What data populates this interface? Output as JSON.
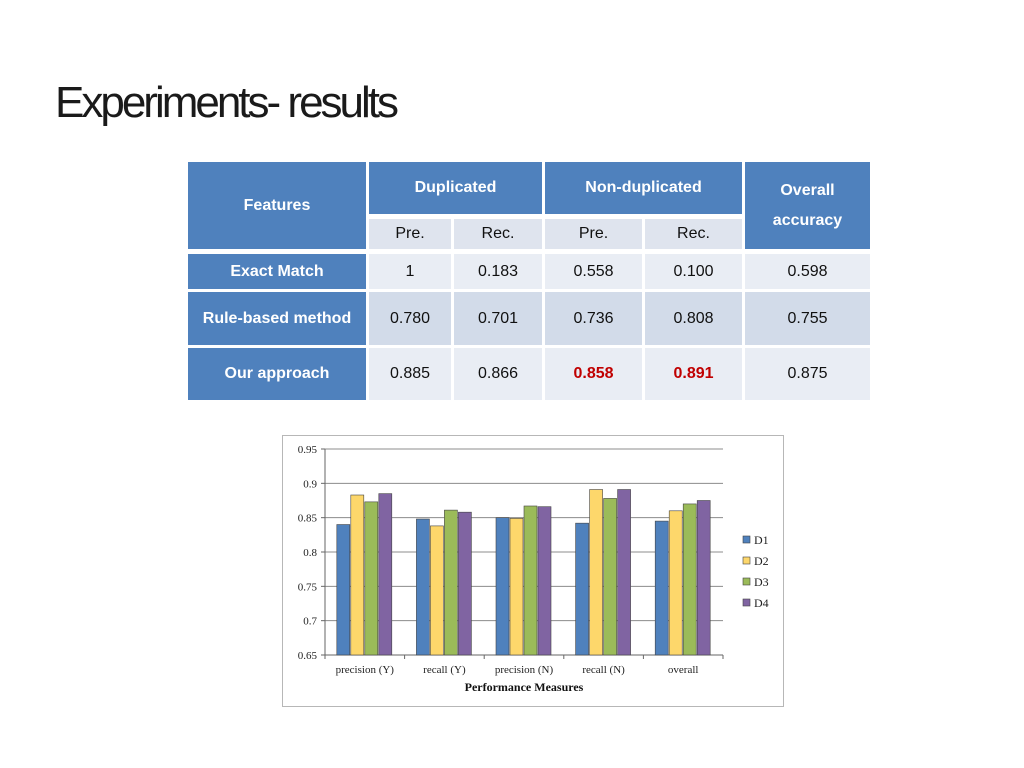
{
  "slide": {
    "title": "Experiments- results"
  },
  "table": {
    "features_label": "Features",
    "duplicated_label": "Duplicated",
    "nonduplicated_label": "Non-duplicated",
    "overall_label_1": "Overall",
    "overall_label_2": "accuracy",
    "sub_pre_1": "Pre.",
    "sub_rec_1": "Rec.",
    "sub_pre_2": "Pre.",
    "sub_rec_2": "Rec.",
    "rows": [
      {
        "name": "Exact Match",
        "dup_pre": "1",
        "dup_rec": "0.183",
        "non_pre": "0.558",
        "non_rec": "0.100",
        "overall": "0.598"
      },
      {
        "name": "Rule-based method",
        "dup_pre": "0.780",
        "dup_rec": "0.701",
        "non_pre": "0.736",
        "non_rec": "0.808",
        "overall": "0.755"
      },
      {
        "name": "Our approach",
        "dup_pre": "0.885",
        "dup_rec": "0.866",
        "non_pre": "0.858",
        "non_rec": "0.891",
        "overall": "0.875"
      }
    ],
    "colors": {
      "header": "#4f81bd",
      "highlight": "#c00000"
    }
  },
  "chart_data": {
    "type": "bar",
    "categories": [
      "precision (Y)",
      "recall (Y)",
      "precision (N)",
      "recall (N)",
      "overall"
    ],
    "series": [
      {
        "name": "D1",
        "color": "#4f81bd",
        "values": [
          0.84,
          0.848,
          0.85,
          0.842,
          0.845
        ]
      },
      {
        "name": "D2",
        "color": "#fdd76b",
        "values": [
          0.883,
          0.838,
          0.849,
          0.891,
          0.86
        ]
      },
      {
        "name": "D3",
        "color": "#9bbb59",
        "values": [
          0.873,
          0.861,
          0.867,
          0.878,
          0.87
        ]
      },
      {
        "name": "D4",
        "color": "#8064a2",
        "values": [
          0.885,
          0.858,
          0.866,
          0.891,
          0.875
        ]
      }
    ],
    "yticks": [
      "0.65",
      "0.7",
      "0.75",
      "0.8",
      "0.85",
      "0.9",
      "0.95"
    ],
    "ylim": [
      0.65,
      0.95
    ],
    "xlabel": "Performance Measures",
    "ylabel": "",
    "grid": true,
    "legend": "right"
  }
}
